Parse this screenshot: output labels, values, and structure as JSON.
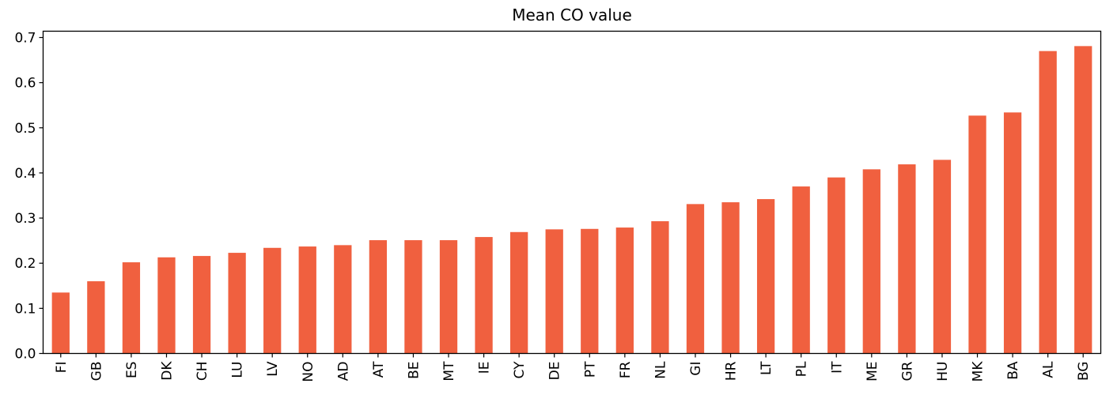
{
  "chart_data": {
    "type": "bar",
    "title": "Mean CO value",
    "xlabel": "",
    "ylabel": "",
    "categories": [
      "FI",
      "GB",
      "ES",
      "DK",
      "CH",
      "LU",
      "LV",
      "NO",
      "AD",
      "AT",
      "BE",
      "MT",
      "IE",
      "CY",
      "DE",
      "PT",
      "FR",
      "NL",
      "GI",
      "HR",
      "LT",
      "PL",
      "IT",
      "ME",
      "GR",
      "HU",
      "MK",
      "BA",
      "AL",
      "BG"
    ],
    "values": [
      0.135,
      0.16,
      0.202,
      0.213,
      0.216,
      0.223,
      0.234,
      0.237,
      0.24,
      0.251,
      0.251,
      0.251,
      0.258,
      0.269,
      0.275,
      0.276,
      0.279,
      0.293,
      0.331,
      0.335,
      0.342,
      0.37,
      0.39,
      0.408,
      0.419,
      0.429,
      0.527,
      0.534,
      0.67,
      0.681
    ],
    "ylim": [
      0,
      0.714
    ],
    "yticks": [
      "0.0",
      "0.1",
      "0.2",
      "0.3",
      "0.4",
      "0.5",
      "0.6",
      "0.7"
    ],
    "bar_color": "#f0603f",
    "grid": false,
    "legend": "none"
  }
}
